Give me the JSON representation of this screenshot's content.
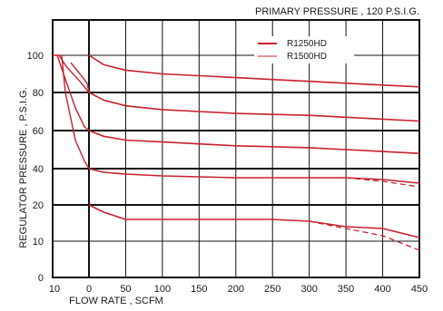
{
  "chart_data": {
    "type": "line",
    "title": "PRIMARY PRESSURE , 120 P.S.I.G.",
    "xlabel": "FLOW RATE , SCFM",
    "ylabel": "REGULATOR PRESSURE , P.S.I.G.",
    "x_tick_labels": [
      "10",
      "0",
      "50",
      "100",
      "150",
      "200",
      "250",
      "300",
      "350",
      "400",
      "450"
    ],
    "y_tick_labels": [
      "0",
      "10",
      "20",
      "40",
      "60",
      "80",
      "100"
    ],
    "grid": true,
    "legend_position": "top-right",
    "colors": {
      "curve": "#c8202f",
      "grid": "#111111"
    },
    "series": [
      {
        "name": "R1250HD",
        "line_style": "solid",
        "curves": [
          {
            "set_pressure": 100,
            "points": [
              [
                0,
                100
              ],
              [
                20,
                95
              ],
              [
                50,
                92
              ],
              [
                100,
                90
              ],
              [
                150,
                89
              ],
              [
                200,
                88
              ],
              [
                250,
                87
              ],
              [
                300,
                86
              ],
              [
                350,
                85
              ],
              [
                400,
                84
              ],
              [
                450,
                83
              ]
            ]
          },
          {
            "set_pressure": 80,
            "points": [
              [
                0,
                80
              ],
              [
                20,
                76
              ],
              [
                50,
                73
              ],
              [
                100,
                71
              ],
              [
                150,
                70
              ],
              [
                200,
                69
              ],
              [
                250,
                68.5
              ],
              [
                300,
                68
              ],
              [
                350,
                67
              ],
              [
                400,
                66
              ],
              [
                450,
                65
              ]
            ]
          },
          {
            "set_pressure": 60,
            "points": [
              [
                0,
                60
              ],
              [
                20,
                57
              ],
              [
                50,
                55
              ],
              [
                100,
                54
              ],
              [
                150,
                53
              ],
              [
                200,
                52
              ],
              [
                250,
                51.5
              ],
              [
                300,
                51
              ],
              [
                350,
                50
              ],
              [
                400,
                49
              ],
              [
                450,
                48
              ]
            ]
          },
          {
            "set_pressure": 40,
            "points": [
              [
                0,
                40
              ],
              [
                20,
                38
              ],
              [
                50,
                37
              ],
              [
                100,
                36
              ],
              [
                150,
                35.5
              ],
              [
                200,
                35
              ],
              [
                250,
                35
              ],
              [
                300,
                35
              ],
              [
                350,
                35
              ],
              [
                400,
                34
              ],
              [
                450,
                32
              ]
            ]
          },
          {
            "set_pressure": 20,
            "points": [
              [
                0,
                20
              ],
              [
                20,
                18
              ],
              [
                50,
                16
              ],
              [
                100,
                16
              ],
              [
                150,
                16
              ],
              [
                200,
                16
              ],
              [
                250,
                16
              ],
              [
                300,
                15.5
              ],
              [
                350,
                14
              ],
              [
                400,
                13.5
              ],
              [
                450,
                11
              ]
            ]
          }
        ]
      },
      {
        "name": "R1500HD",
        "line_style": "dashed",
        "curves": [
          {
            "set_pressure": 40,
            "points": [
              [
                350,
                35
              ],
              [
                400,
                33
              ],
              [
                450,
                30
              ]
            ]
          },
          {
            "set_pressure": 20,
            "points": [
              [
                300,
                15.5
              ],
              [
                350,
                13.5
              ],
              [
                400,
                11.5
              ],
              [
                450,
                7.5
              ]
            ]
          }
        ]
      }
    ],
    "lockup_curves": [
      {
        "points": [
          [
            -40,
            100
          ],
          [
            -33,
            100
          ],
          [
            -25,
            94
          ],
          [
            -10,
            86
          ],
          [
            0,
            80
          ]
        ]
      },
      {
        "points": [
          [
            -35,
            100
          ],
          [
            -28,
            90
          ],
          [
            -15,
            72
          ],
          [
            -5,
            62
          ],
          [
            0,
            60
          ]
        ]
      },
      {
        "points": [
          [
            -30,
            100
          ],
          [
            -26,
            80
          ],
          [
            -15,
            55
          ],
          [
            -5,
            44
          ],
          [
            0,
            40
          ]
        ]
      },
      {
        "points": [
          [
            -20,
            96
          ],
          [
            -10,
            90
          ],
          [
            -2,
            85
          ],
          [
            0,
            80
          ]
        ]
      }
    ]
  }
}
